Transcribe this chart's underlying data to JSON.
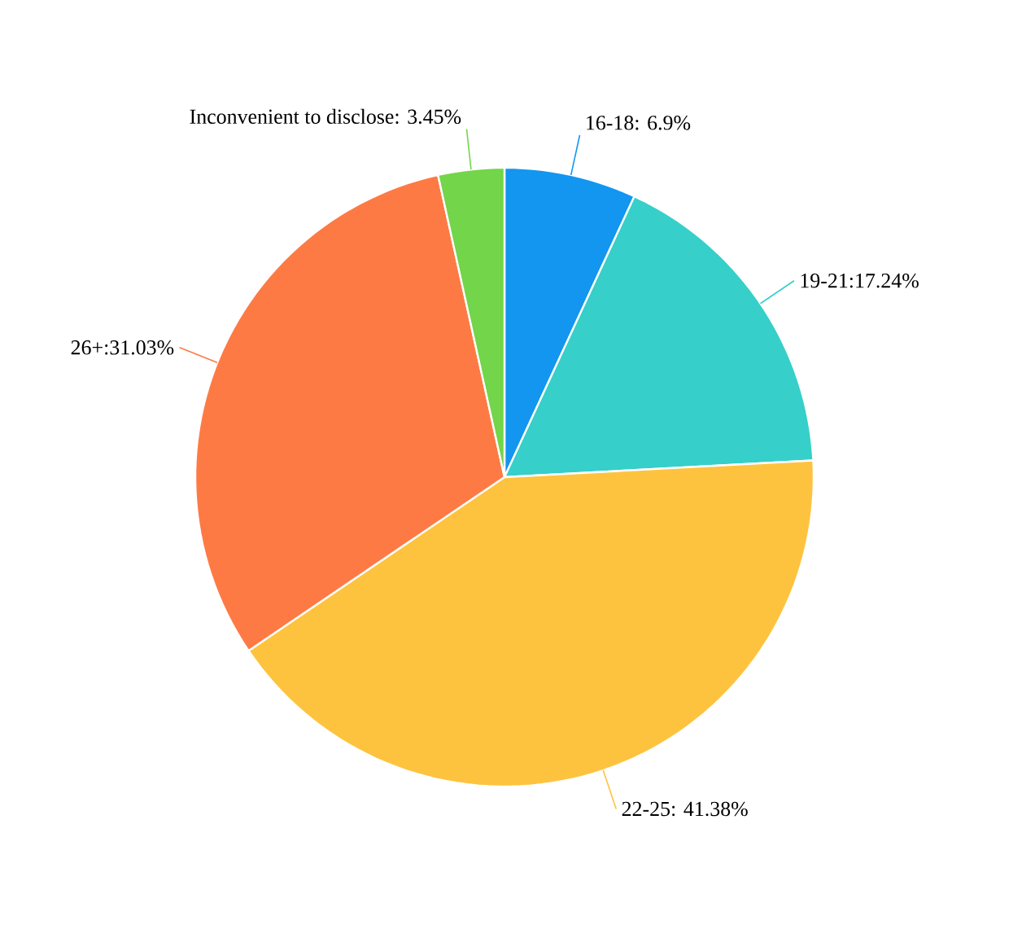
{
  "chart_data": {
    "type": "pie",
    "categories": [
      "16-18: 6.9%",
      "19-21:17.24%",
      "22-25: 41.38%",
      "26+:31.03%",
      "Inconvenient to disclose: 3.45%"
    ],
    "values": [
      6.9,
      17.24,
      41.38,
      31.03,
      3.45
    ],
    "colors": [
      "#1296f0",
      "#36cfc9",
      "#fec33e",
      "#fe7a45",
      "#72d54a"
    ]
  }
}
